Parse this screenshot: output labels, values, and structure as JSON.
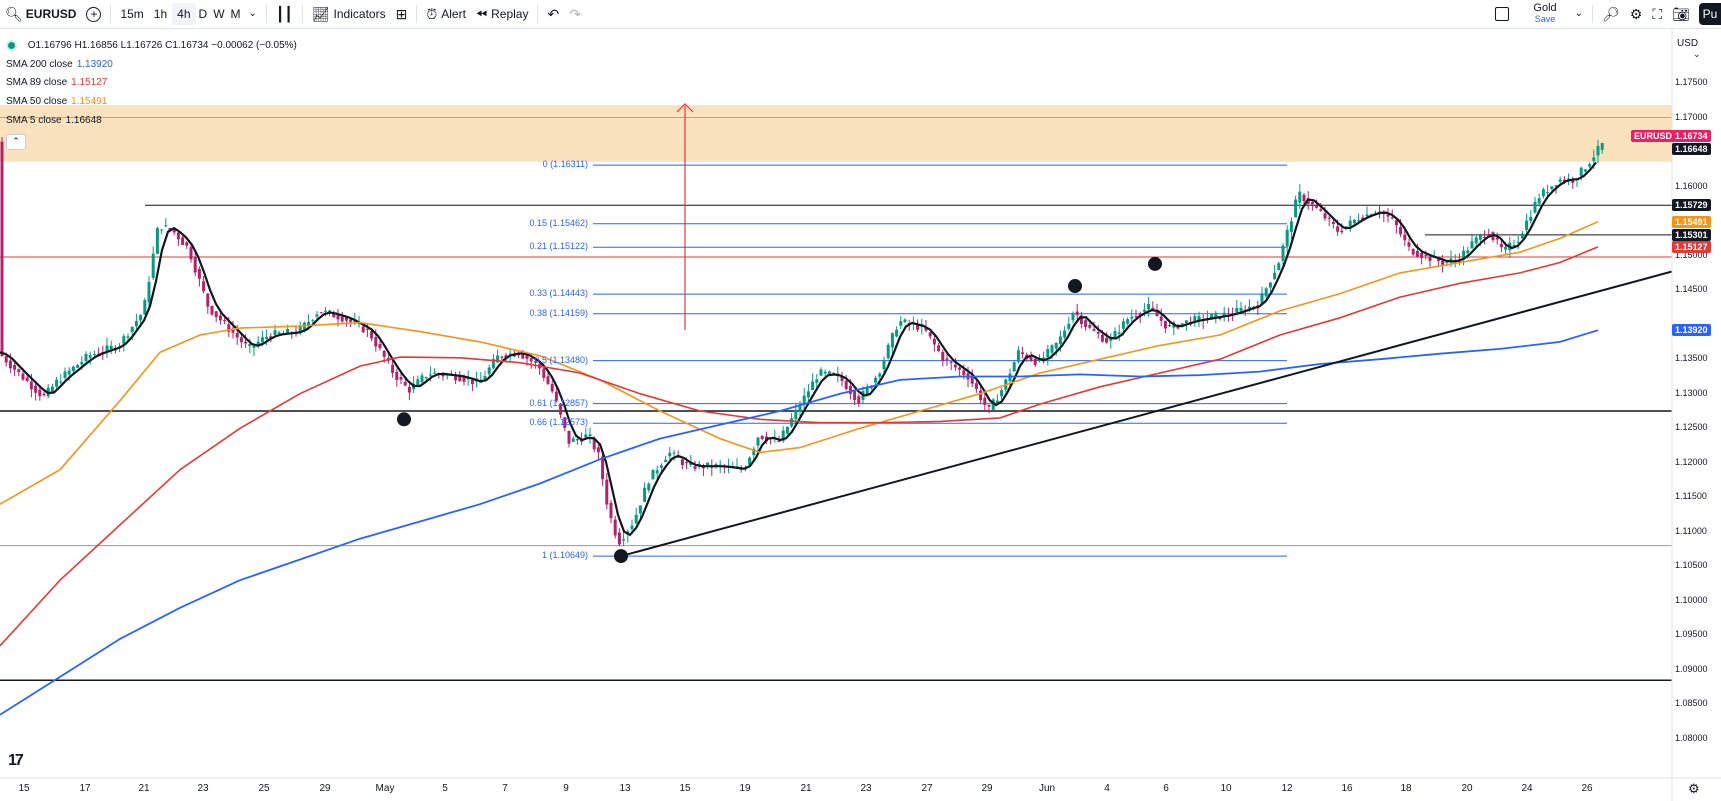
{
  "toolbar": {
    "symbol": "EURUSD",
    "intervals": [
      "15m",
      "1h",
      "4h",
      "D",
      "W",
      "M"
    ],
    "active_interval": "4h",
    "indicators_label": "Indicators",
    "alert_label": "Alert",
    "replay_label": "Replay",
    "gold_label": "Gold",
    "gold_sub": "Save",
    "publish_label": "Pu"
  },
  "legend": {
    "ohlc": "O1.16796 H1.16856 L1.16726 C1.16734 −0.00062 (−0.05%)",
    "sma200": {
      "label": "SMA 200 close",
      "value": "1.13920",
      "color": "#2962ff"
    },
    "sma89": {
      "label": "SMA 89 close",
      "value": "1.15127",
      "color": "#e53935"
    },
    "sma50": {
      "label": "SMA 50 close",
      "value": "1.15491",
      "color": "#f7931a"
    },
    "sma5": {
      "label": "SMA 5 close",
      "value": "1.16648",
      "color": "#131722"
    }
  },
  "currency": "USD",
  "price_ticks": [
    "1.17500",
    "1.17000",
    "1.16000",
    "1.15000",
    "1.14500",
    "1.13500",
    "1.13000",
    "1.12500",
    "1.12000",
    "1.11500",
    "1.11000",
    "1.10500",
    "1.10000",
    "1.09500",
    "1.09000",
    "1.08500",
    "1.08000"
  ],
  "price_badges": [
    {
      "text": "EURUSD",
      "color": "#e91e63"
    },
    {
      "text": "1.16734",
      "color": "#e91e63"
    },
    {
      "text": "1.16648",
      "color": "#131722"
    },
    {
      "text": "1.15729",
      "color": "#131722"
    },
    {
      "text": "1.15491",
      "color": "#f7931a"
    },
    {
      "text": "1.15301",
      "color": "#131722"
    },
    {
      "text": "1.15127",
      "color": "#e53935"
    },
    {
      "text": "1.13920",
      "color": "#2962ff"
    }
  ],
  "fib_levels": [
    {
      "label": "0 (1.16311)",
      "price": 1.16311
    },
    {
      "label": "0.15 (1.15462)",
      "price": 1.15462
    },
    {
      "label": "0.21 (1.15122)",
      "price": 1.15122
    },
    {
      "label": "0.33 (1.14443)",
      "price": 1.14443
    },
    {
      "label": "0.38 (1.14159)",
      "price": 1.14159
    },
    {
      "label": "0.5 (1.13480)",
      "price": 1.1348
    },
    {
      "label": "0.61 (1.12857)",
      "price": 1.12857
    },
    {
      "label": "0.66 (1.12573)",
      "price": 1.12573
    },
    {
      "label": "1 (1.10649)",
      "price": 1.10649
    }
  ],
  "time_labels": [
    "15",
    "17",
    "21",
    "23",
    "25",
    "29",
    "May",
    "5",
    "7",
    "9",
    "13",
    "15",
    "19",
    "21",
    "23",
    "27",
    "29",
    "Jun",
    "4",
    "6",
    "10",
    "12",
    "16",
    "18",
    "20",
    "24",
    "26"
  ]
}
